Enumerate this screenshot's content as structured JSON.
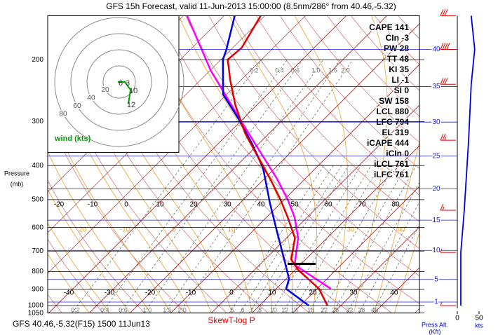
{
  "chart_data": {
    "type": "skewt",
    "title": "GFS 15h Forecast, valid 11-Jun-2013 15:00:00 (8.5nm/286° from 40.46,-5.32)",
    "footer": "GFS 40.46,-5.32(F15) 1500 11Jun13",
    "diagram_label": "SkewT-log P",
    "y_label": [
      "Pressure",
      "(mb)"
    ],
    "ylim": [
      1050,
      150
    ],
    "yticks": [
      1050,
      1000,
      900,
      800,
      700,
      600,
      500,
      400,
      300,
      200
    ],
    "temperature": {
      "color": "#e00000",
      "pressure": [
        1000,
        896,
        791,
        739,
        690,
        643,
        561,
        500,
        436,
        385,
        324,
        269,
        229,
        200,
        185,
        150
      ],
      "values": [
        26.7,
        20.5,
        10.7,
        6.4,
        4.3,
        2.1,
        -4.8,
        -10.9,
        -18.6,
        -25.9,
        -35.9,
        -45.3,
        -52.6,
        -58.3,
        -57.8,
        -61.0
      ]
    },
    "dewpoint": {
      "color": "#0000e0",
      "pressure": [
        1000,
        896,
        840,
        739,
        615,
        512,
        407,
        347,
        295,
        251,
        200,
        188,
        150
      ],
      "values": [
        22.1,
        12.4,
        10.7,
        4.7,
        -4.0,
        -12.6,
        -22.9,
        -31.6,
        -41.0,
        -50.9,
        -59.5,
        -61.0,
        -67.4
      ]
    },
    "parcel": {
      "color": "#ff00ff",
      "pressure": [
        896,
        766,
        643,
        561,
        500,
        436,
        363,
        302,
        214,
        150
      ],
      "values": [
        23.4,
        8.6,
        2.9,
        -3.1,
        -9.1,
        -16.9,
        -28.1,
        -39.3,
        -60.0,
        -79.1
      ]
    },
    "isotherm_ticks": [
      -40,
      -30,
      -20,
      -10,
      0,
      10,
      20,
      30,
      40
    ],
    "upper_ticks": [
      -20,
      -10,
      0,
      10,
      20,
      30,
      40,
      50,
      60,
      70,
      80
    ],
    "moist_labels": [
      20,
      -10,
      0,
      10,
      30,
      40
    ],
    "mixing_ratio_ticks": [
      0.2,
      0.4,
      0.6,
      {
        "value": 1,
        "label": "1.0"
      },
      1.5,
      {
        "value": 2,
        "label": "2.0"
      },
      5,
      6,
      7,
      8,
      10,
      12,
      14,
      18,
      22,
      26,
      32,
      38,
      46
    ],
    "mixing_ratio_upper_ticks": [
      0.2,
      0.4,
      0.6,
      {
        "value": 1,
        "label": "1.0"
      },
      1.5,
      {
        "value": 2,
        "label": "2.0"
      }
    ],
    "indices": [
      {
        "name": "CAPE",
        "value": 141
      },
      {
        "name": "CIn",
        "value": -3
      },
      {
        "name": "PW",
        "value": 28
      },
      {
        "name": "TT",
        "value": 48
      },
      {
        "name": "KI",
        "value": 35
      },
      {
        "name": "LI",
        "value": -1
      },
      {
        "name": "SI",
        "value": 0
      },
      {
        "name": "SW",
        "value": 158
      },
      {
        "name": "LCL",
        "value": 880
      },
      {
        "name": "LFC",
        "value": 794
      },
      {
        "name": "EL",
        "value": 319
      },
      {
        "name": "iCAPE",
        "value": 444
      },
      {
        "name": "iCIn",
        "value": 0
      },
      {
        "name": "iLCL",
        "value": 761
      },
      {
        "name": "iLFC",
        "value": 761
      }
    ],
    "hodograph": {
      "label": "wind (kts)",
      "rings": [
        20,
        40,
        60,
        80
      ],
      "color": "#00a000",
      "u": [
        -1.7,
        7,
        14,
        11.3
      ],
      "v": [
        0,
        0,
        -9.6,
        -27
      ],
      "labels": [
        "6",
        "3",
        "10",
        "12"
      ]
    },
    "wind": {
      "color": "#0000e0",
      "pressure": [
        1000,
        706,
        536,
        339,
        235,
        187,
        150
      ],
      "speed": [
        8,
        8,
        16,
        26,
        32,
        40,
        32
      ]
    },
    "altitude_label": [
      "Press Alt.",
      "(Kft)"
    ],
    "altitude_ticks": [
      1,
      5,
      10,
      15,
      20,
      25,
      30,
      35,
      40
    ],
    "speed_label": "kts",
    "speed_lim": [
      0,
      50
    ],
    "speed_ticks": [
      0,
      50
    ]
  }
}
